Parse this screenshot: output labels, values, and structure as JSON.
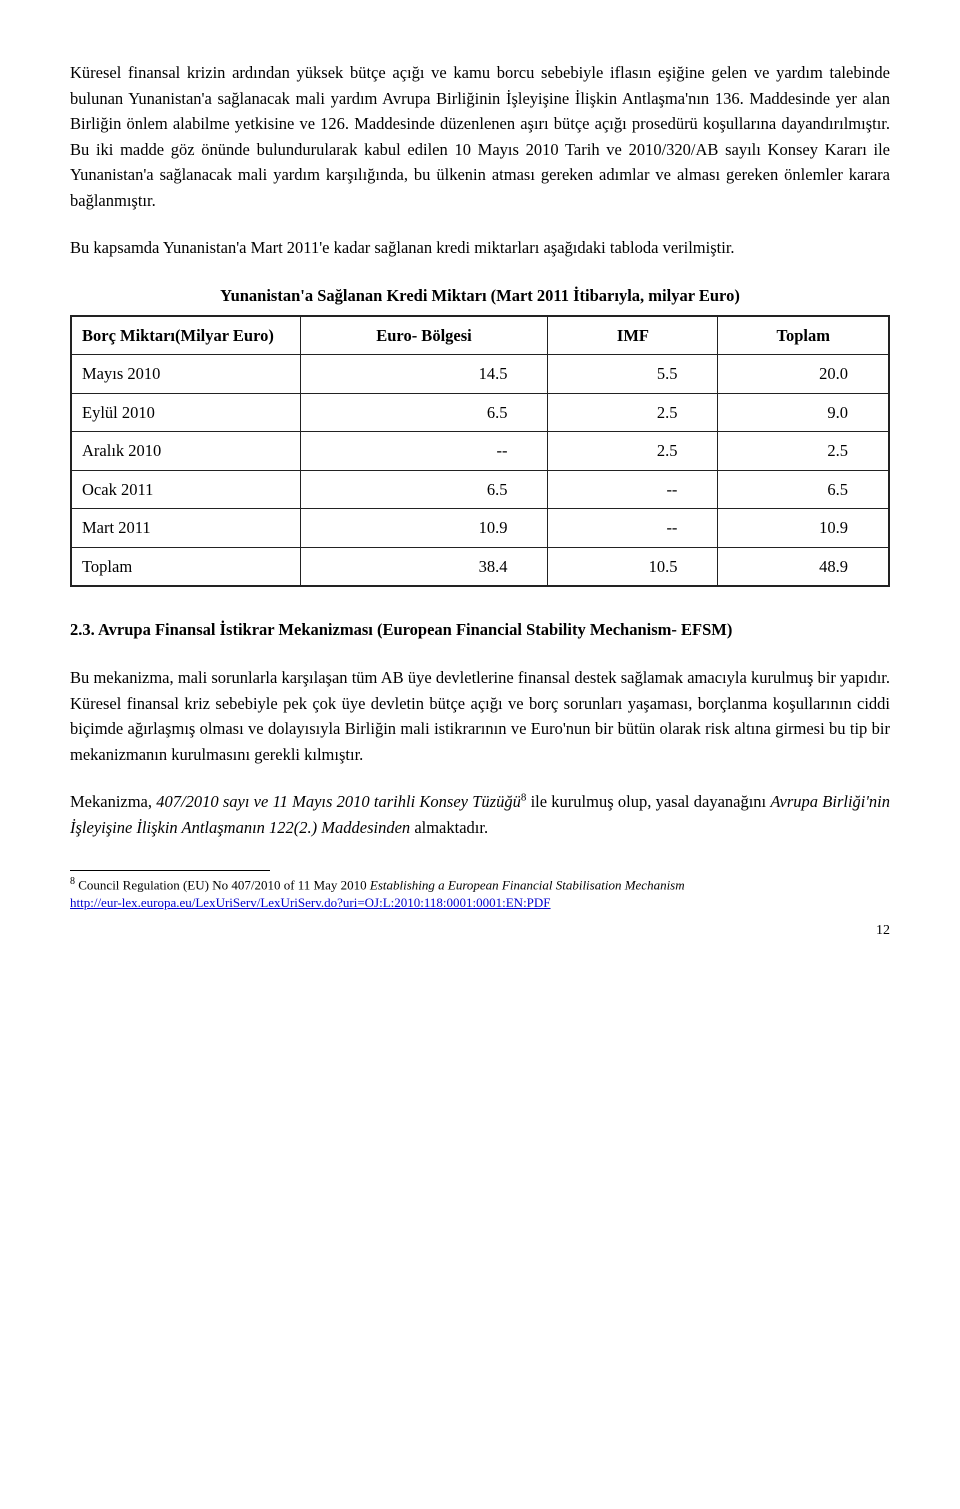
{
  "paragraphs": {
    "p1": "Küresel finansal krizin ardından yüksek bütçe açığı ve kamu borcu sebebiyle iflasın eşiğine gelen ve yardım talebinde bulunan Yunanistan'a sağlanacak mali yardım Avrupa Birliğinin İşleyişine İlişkin Antlaşma'nın 136. Maddesinde yer alan Birliğin önlem alabilme yetkisine ve 126. Maddesinde düzenlenen aşırı bütçe açığı prosedürü koşullarına dayandırılmıştır. Bu iki madde göz önünde bulundurularak kabul edilen 10 Mayıs 2010 Tarih ve 2010/320/AB sayılı Konsey Kararı ile Yunanistan'a sağlanacak mali yardım karşılığında, bu ülkenin atması gereken adımlar ve alması gereken önlemler karara bağlanmıştır.",
    "p2": "Bu kapsamda Yunanistan'a Mart 2011'e kadar sağlanan kredi miktarları aşağıdaki tabloda verilmiştir.",
    "p3_a": "Bu mekanizma, mali sorunlarla karşılaşan tüm AB üye devletlerine finansal destek sağlamak amacıyla kurulmuş bir yapıdır.  Küresel finansal kriz sebebiyle pek çok üye devletin bütçe açığı ve borç sorunları yaşaması, borçlanma koşullarının ciddi biçimde ağırlaşmış olması ve dolayısıyla Birliğin mali istikrarının ve Euro'nun bir bütün olarak risk altına girmesi bu tip bir mekanizmanın kurulmasını gerekli kılmıştır.",
    "p4_a": "Mekanizma, ",
    "p4_b": "407/2010 sayı ve 11 Mayıs 2010 tarihli Konsey Tüzüğü",
    "p4_c": " ile kurulmuş olup, yasal dayanağını ",
    "p4_d": "Avrupa Birliği'nin İşleyişine İlişkin Antlaşmanın 122(2.) Maddesinden",
    "p4_e": " almaktadır."
  },
  "section_heading": "2.3. Avrupa Finansal İstikrar Mekanizması (European Financial Stability Mechanism- EFSM)",
  "table": {
    "title": "Yunanistan'a Sağlanan Kredi Miktarı (Mart 2011 İtibarıyla, milyar Euro)",
    "header_row_label": "Borç Miktarı(Milyar Euro)",
    "columns": [
      "Euro- Bölgesi",
      "IMF",
      "Toplam"
    ],
    "rows": [
      {
        "label": "Mayıs 2010",
        "cells": [
          "14.5",
          "5.5",
          "20.0"
        ]
      },
      {
        "label": "Eylül 2010",
        "cells": [
          "6.5",
          "2.5",
          "9.0"
        ]
      },
      {
        "label": "Aralık 2010",
        "cells": [
          "--",
          "2.5",
          "2.5"
        ]
      },
      {
        "label": "Ocak 2011",
        "cells": [
          "6.5",
          "--",
          "6.5"
        ]
      },
      {
        "label": "Mart  2011",
        "cells": [
          "10.9",
          "--",
          "10.9"
        ]
      },
      {
        "label": "Toplam",
        "cells": [
          "38.4",
          "10.5",
          "48.9"
        ]
      }
    ],
    "col_widths": [
      "28%",
      "24%",
      "24%",
      "24%"
    ]
  },
  "footnote": {
    "marker": "8",
    "text_a": " Council Regulation (EU) No 407/2010 of 11 May 2010 ",
    "text_b": "Establishing a European Financial Stabilisation Mechanism",
    "link": "http://eur-lex.europa.eu/LexUriServ/LexUriServ.do?uri=OJ:L:2010:118:0001:0001:EN:PDF"
  },
  "fn_ref": "8",
  "page_number": "12"
}
